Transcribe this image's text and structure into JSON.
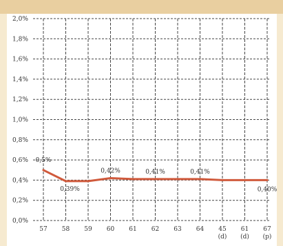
{
  "chart_data": {
    "type": "line",
    "title": "",
    "xlabel": "",
    "ylabel": "",
    "x_categories": [
      "57",
      "58",
      "59",
      "60",
      "61",
      "62",
      "63",
      "64",
      "45\n(d)",
      "61\n(d)",
      "67\n(p)"
    ],
    "series": [
      {
        "values": [
          0.5,
          0.39,
          0.39,
          0.42,
          0.41,
          0.41,
          0.41,
          0.41,
          0.4,
          0.4,
          0.4
        ]
      }
    ],
    "data_labels": [
      {
        "index": 0,
        "text": "0,5%"
      },
      {
        "index": 1,
        "text": "0,39%"
      },
      {
        "index": 3,
        "text": "0,42%"
      },
      {
        "index": 5,
        "text": "0,41%"
      },
      {
        "index": 7,
        "text": "0,41%"
      },
      {
        "index": 10,
        "text": "0,40%"
      }
    ],
    "y_ticks": [
      "0,0%",
      "0,2%",
      "0,4%",
      "0,6%",
      "0,8%",
      "1,0%",
      "1,2%",
      "1,4%",
      "1,6%",
      "1,8%",
      "2,0%"
    ],
    "ylim": [
      0,
      2.0
    ],
    "grid": true,
    "colors": {
      "background": "#f6ead0",
      "top_band": "#e9cfa0",
      "plot_background": "#ffffff",
      "line": "#d05a3c",
      "grid": "#444444"
    }
  }
}
